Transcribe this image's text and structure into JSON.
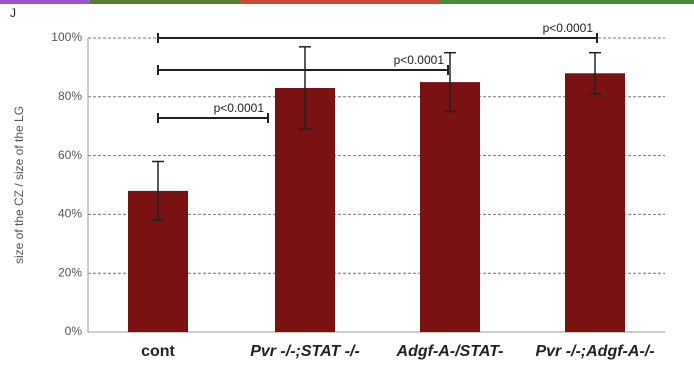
{
  "chart_data": {
    "type": "bar",
    "panel_label": "J",
    "y_label": "size of the CZ / size of the LG",
    "categories": [
      "cont",
      "Pvr -/-;STAT -/-",
      "Adgf-A-/STAT-",
      "Pvr -/-;Adgf-A-/-"
    ],
    "values": [
      48,
      83,
      85,
      88
    ],
    "errors": [
      10,
      14,
      10,
      7
    ],
    "color": "#7a1214",
    "ylim": [
      0,
      100
    ],
    "yticks": [
      {
        "value": 0,
        "label": "0%"
      },
      {
        "value": 20,
        "label": "20%"
      },
      {
        "value": 40,
        "label": "40%"
      },
      {
        "value": 60,
        "label": "60%"
      },
      {
        "value": 80,
        "label": "80%"
      },
      {
        "value": 100,
        "label": "100%"
      }
    ],
    "grid": true,
    "comparisons": [
      {
        "label": "p<0.0001"
      },
      {
        "label": "p<0.0001"
      },
      {
        "label": "p<0.0001"
      }
    ]
  }
}
